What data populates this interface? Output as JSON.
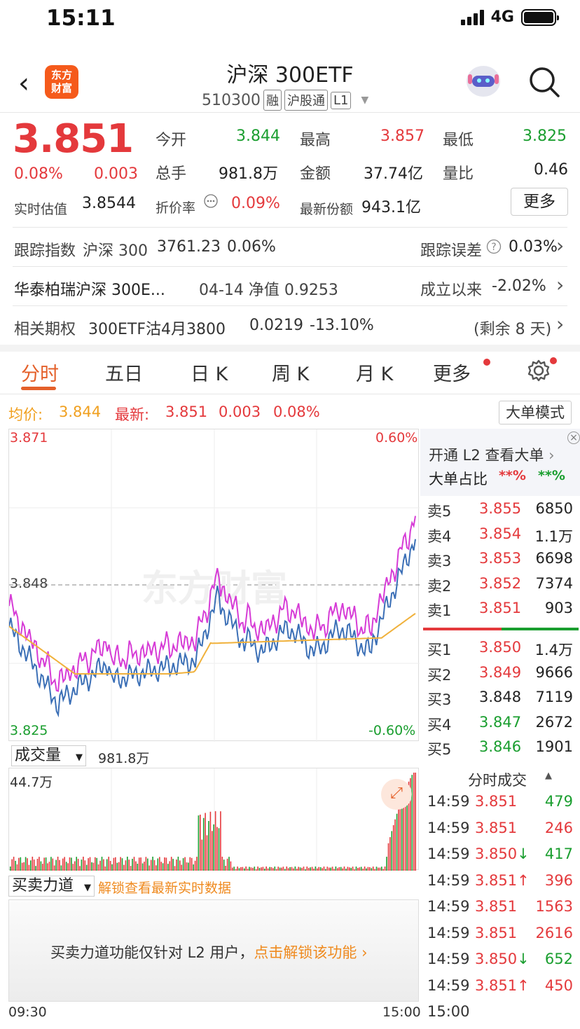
{
  "status": {
    "time": "15:11",
    "network": "4G"
  },
  "header": {
    "logo_line1": "东方",
    "logo_line2": "财富",
    "title": "沪深 300ETF",
    "code": "510300",
    "tags": [
      "融",
      "沪股通",
      "L1"
    ]
  },
  "quote": {
    "price": "3.851",
    "change_pct": "0.08%",
    "change": "0.003",
    "est_label": "实时估值",
    "est_value": "3.8544",
    "fields": [
      {
        "label": "今开",
        "value": "3.844",
        "color": "green"
      },
      {
        "label": "最高",
        "value": "3.857",
        "color": "red"
      },
      {
        "label": "最低",
        "value": "3.825",
        "color": "green"
      },
      {
        "label": "总手",
        "value": "981.8万",
        "color": "dark"
      },
      {
        "label": "金额",
        "value": "37.74亿",
        "color": "dark"
      },
      {
        "label": "量比",
        "value": "0.46",
        "color": "dark"
      },
      {
        "label": "折价率",
        "value": "0.09%",
        "color": "red"
      },
      {
        "label": "最新份额",
        "value": "943.1亿",
        "color": "dark"
      }
    ],
    "more_label": "更多"
  },
  "tracking": {
    "label": "跟踪指数",
    "index_name": "沪深 300",
    "index_value": "3761.23",
    "index_pct": "0.06%",
    "error_label": "跟踪误差",
    "error_value": "0.03%"
  },
  "fund": {
    "name": "华泰柏瑞沪深 300E...",
    "nav_text": "04-14 净值 0.9253",
    "since_label": "成立以来",
    "since_value": "-2.02%"
  },
  "options": {
    "label": "相关期权",
    "name": "300ETF沽4月3800",
    "price": "0.0219",
    "pct": "-13.10%",
    "remain": "(剩余 8 天)"
  },
  "tabs": [
    {
      "label": "分时",
      "active": true
    },
    {
      "label": "五日"
    },
    {
      "label": "日 K"
    },
    {
      "label": "周 K"
    },
    {
      "label": "月 K"
    },
    {
      "label": "更多"
    }
  ],
  "chart_header": {
    "avg_label": "均价:",
    "avg_value": "3.844",
    "latest_label": "最新:",
    "latest_price": "3.851",
    "latest_change": "0.003",
    "latest_pct": "0.08%",
    "big_order_mode": "大单模式"
  },
  "chart_data": {
    "type": "line",
    "y_top": "3.871",
    "y_mid": "3.848",
    "y_bottom": "3.825",
    "pct_top": "0.60%",
    "pct_bottom": "-0.60%",
    "ylim": [
      3.825,
      3.871
    ],
    "watermark": "东方财富",
    "colors": {
      "price": "#3b6fb6",
      "avg": "#f0b13b",
      "index": "#d63bd6"
    }
  },
  "volume": {
    "selector_label": "成交量",
    "total": "981.8万",
    "max_label": "44.7万"
  },
  "power": {
    "selector_label": "买卖力道",
    "unlock_text": "解锁查看最新实时数据",
    "notice_prefix": "买卖力道功能仅针对 L2 用户，",
    "notice_link": "点击解锁该功能"
  },
  "time_axis": {
    "start": "09:30",
    "end": "15:00"
  },
  "orderbook": {
    "l2_prompt": "开通 L2 查看大单",
    "big_label": "大单占比",
    "big_red": "**%",
    "big_green": "**%",
    "asks": [
      {
        "label": "卖5",
        "price": "3.855",
        "vol": "6850",
        "color": "red"
      },
      {
        "label": "卖4",
        "price": "3.854",
        "vol": "1.1万",
        "color": "red"
      },
      {
        "label": "卖3",
        "price": "3.853",
        "vol": "6698",
        "color": "red"
      },
      {
        "label": "卖2",
        "price": "3.852",
        "vol": "7374",
        "color": "red"
      },
      {
        "label": "卖1",
        "price": "3.851",
        "vol": "903",
        "color": "red"
      }
    ],
    "bids": [
      {
        "label": "买1",
        "price": "3.850",
        "vol": "1.4万",
        "color": "red"
      },
      {
        "label": "买2",
        "price": "3.849",
        "vol": "9666",
        "color": "red"
      },
      {
        "label": "买3",
        "price": "3.848",
        "vol": "7119",
        "color": "dark"
      },
      {
        "label": "买4",
        "price": "3.847",
        "vol": "2672",
        "color": "green"
      },
      {
        "label": "买5",
        "price": "3.846",
        "vol": "1901",
        "color": "green"
      }
    ],
    "trades_title": "分时成交",
    "trades": [
      {
        "time": "14:59",
        "price": "3.851",
        "vol": "479",
        "vol_color": "green"
      },
      {
        "time": "14:59",
        "price": "3.851",
        "vol": "246",
        "vol_color": "red"
      },
      {
        "time": "14:59",
        "price": "3.850↓",
        "vol": "417",
        "vol_color": "green"
      },
      {
        "time": "14:59",
        "price": "3.851↑",
        "vol": "396",
        "vol_color": "red"
      },
      {
        "time": "14:59",
        "price": "3.851",
        "vol": "1563",
        "vol_color": "red"
      },
      {
        "time": "14:59",
        "price": "3.851",
        "vol": "2616",
        "vol_color": "red"
      },
      {
        "time": "14:59",
        "price": "3.850↓",
        "vol": "652",
        "vol_color": "green"
      },
      {
        "time": "14:59",
        "price": "3.851↑",
        "vol": "450",
        "vol_color": "red"
      },
      {
        "time": "15:00",
        "price": "",
        "vol": "",
        "vol_color": "dark"
      }
    ]
  }
}
